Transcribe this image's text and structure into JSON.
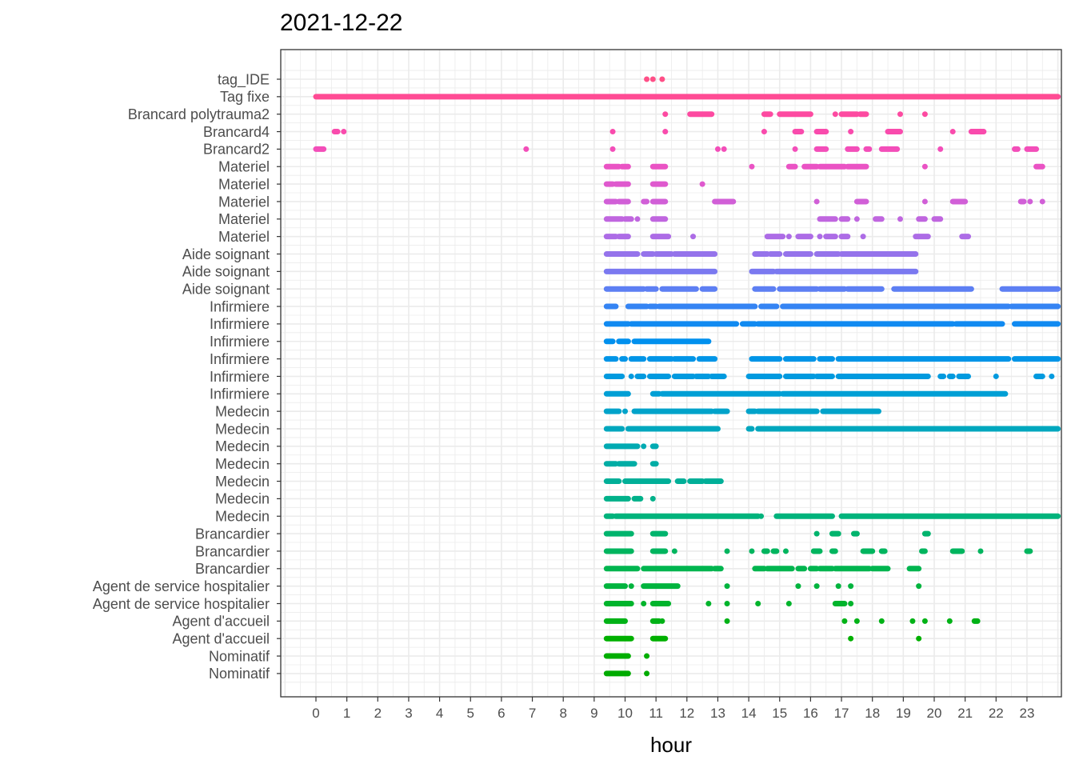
{
  "chart_data": {
    "type": "scatter",
    "title": "2021-12-22",
    "xlabel": "hour",
    "ylabel": "",
    "xlim": [
      -1.15,
      24
    ],
    "x_ticks": [
      "0",
      "1",
      "2",
      "3",
      "4",
      "5",
      "6",
      "7",
      "8",
      "9",
      "10",
      "11",
      "12",
      "13",
      "14",
      "15",
      "16",
      "17",
      "18",
      "19",
      "20",
      "21",
      "22",
      "23"
    ],
    "grid": true,
    "legend": "none",
    "categories": [
      "tag_IDE",
      "Tag fixe",
      "Brancard polytrauma2",
      "Brancard4",
      "Brancard2",
      "Materiel",
      "Materiel",
      "Materiel",
      "Materiel",
      "Materiel",
      "Aide soignant",
      "Aide soignant",
      "Aide soignant",
      "Infirmiere",
      "Infirmiere",
      "Infirmiere",
      "Infirmiere",
      "Infirmiere",
      "Infirmiere",
      "Medecin",
      "Medecin",
      "Medecin",
      "Medecin",
      "Medecin",
      "Medecin",
      "Medecin",
      "Brancardier",
      "Brancardier",
      "Brancardier",
      "Agent de service hospitalier",
      "Agent de service hospitalier",
      "Agent d'accueil",
      "Agent d'accueil",
      "Nominatif",
      "Nominatif"
    ],
    "series": [
      {
        "color": "#FF4F87",
        "segments": [
          [
            10.7,
            10.7
          ],
          [
            10.9,
            10.9
          ],
          [
            11.2,
            11.2
          ]
        ]
      },
      {
        "color": "#FF4B94",
        "segments": [
          [
            0,
            24
          ]
        ]
      },
      {
        "color": "#FD4AA1",
        "segments": [
          [
            11.3,
            11.3
          ],
          [
            12.1,
            12.8
          ],
          [
            14.5,
            14.7
          ],
          [
            15.0,
            16.0
          ],
          [
            16.8,
            16.8
          ],
          [
            17.0,
            17.5
          ],
          [
            17.6,
            17.8
          ],
          [
            18.9,
            18.9
          ],
          [
            19.7,
            19.7
          ]
        ]
      },
      {
        "color": "#F94BAD",
        "segments": [
          [
            0.6,
            0.7
          ],
          [
            0.9,
            0.9
          ],
          [
            9.6,
            9.6
          ],
          [
            11.3,
            11.3
          ],
          [
            14.5,
            14.5
          ],
          [
            15.5,
            15.7
          ],
          [
            16.2,
            16.5
          ],
          [
            17.3,
            17.3
          ],
          [
            18.5,
            18.9
          ],
          [
            20.6,
            20.6
          ],
          [
            21.2,
            21.6
          ]
        ]
      },
      {
        "color": "#F34EB9",
        "segments": [
          [
            0,
            0.25
          ],
          [
            6.8,
            6.8
          ],
          [
            9.6,
            9.6
          ],
          [
            13.0,
            13.0
          ],
          [
            13.2,
            13.2
          ],
          [
            15.5,
            15.5
          ],
          [
            16.2,
            16.5
          ],
          [
            17.2,
            17.5
          ],
          [
            17.8,
            17.9
          ],
          [
            18.3,
            18.8
          ],
          [
            20.2,
            20.2
          ],
          [
            22.6,
            22.7
          ],
          [
            23.0,
            23.3
          ]
        ]
      },
      {
        "color": "#EA53C4",
        "segments": [
          [
            9.4,
            9.8
          ],
          [
            9.9,
            10.1
          ],
          [
            10.9,
            11.3
          ],
          [
            14.1,
            14.1
          ],
          [
            15.3,
            15.5
          ],
          [
            15.8,
            16.2
          ],
          [
            16.3,
            17.1
          ],
          [
            17.2,
            17.8
          ],
          [
            19.7,
            19.7
          ],
          [
            23.3,
            23.5
          ]
        ]
      },
      {
        "color": "#DF59CE",
        "segments": [
          [
            9.4,
            9.6
          ],
          [
            9.7,
            10.1
          ],
          [
            10.9,
            11.3
          ],
          [
            12.5,
            12.5
          ]
        ]
      },
      {
        "color": "#D15FD7",
        "segments": [
          [
            9.4,
            9.7
          ],
          [
            9.8,
            10.1
          ],
          [
            10.6,
            10.7
          ],
          [
            10.9,
            11.3
          ],
          [
            12.9,
            13.5
          ],
          [
            16.2,
            16.2
          ],
          [
            17.5,
            17.8
          ],
          [
            19.7,
            19.7
          ],
          [
            20.6,
            21.0
          ],
          [
            22.8,
            22.9
          ],
          [
            23.1,
            23.1
          ],
          [
            23.5,
            23.5
          ]
        ]
      },
      {
        "color": "#C066DF",
        "segments": [
          [
            9.4,
            9.9
          ],
          [
            10.0,
            10.2
          ],
          [
            10.4,
            10.4
          ],
          [
            10.9,
            11.3
          ],
          [
            16.3,
            16.8
          ],
          [
            17.0,
            17.2
          ],
          [
            17.5,
            17.5
          ],
          [
            18.1,
            18.3
          ],
          [
            18.9,
            18.9
          ],
          [
            19.5,
            19.7
          ],
          [
            20.0,
            20.2
          ]
        ]
      },
      {
        "color": "#AD6CE6",
        "segments": [
          [
            9.4,
            9.7
          ],
          [
            9.8,
            10.1
          ],
          [
            10.9,
            11.4
          ],
          [
            12.2,
            12.2
          ],
          [
            14.6,
            15.1
          ],
          [
            15.3,
            15.3
          ],
          [
            15.6,
            16.0
          ],
          [
            16.3,
            16.3
          ],
          [
            16.5,
            16.8
          ],
          [
            17.0,
            17.2
          ],
          [
            17.7,
            17.7
          ],
          [
            19.4,
            19.8
          ],
          [
            20.9,
            21.1
          ]
        ]
      },
      {
        "color": "#9573EB",
        "segments": [
          [
            9.4,
            10.4
          ],
          [
            10.6,
            10.9
          ],
          [
            11.0,
            11.5
          ],
          [
            11.6,
            12.9
          ],
          [
            14.2,
            14.6
          ],
          [
            14.7,
            15.0
          ],
          [
            15.2,
            16.0
          ],
          [
            16.2,
            16.9
          ],
          [
            17.0,
            19.4
          ]
        ]
      },
      {
        "color": "#7B79F0",
        "segments": [
          [
            9.4,
            12.9
          ],
          [
            14.1,
            14.8
          ],
          [
            14.9,
            19.4
          ]
        ]
      },
      {
        "color": "#5D7FF3",
        "segments": [
          [
            9.4,
            10.6
          ],
          [
            10.7,
            11.0
          ],
          [
            11.2,
            12.3
          ],
          [
            12.5,
            12.9
          ],
          [
            14.2,
            14.8
          ],
          [
            15.0,
            16.2
          ],
          [
            16.3,
            17.1
          ],
          [
            17.2,
            18.3
          ],
          [
            18.7,
            21.2
          ],
          [
            22.2,
            24.0
          ]
        ]
      },
      {
        "color": "#3584F3",
        "segments": [
          [
            9.4,
            9.7
          ],
          [
            10.1,
            10.7
          ],
          [
            10.8,
            11.0
          ],
          [
            11.1,
            14.2
          ],
          [
            14.4,
            14.9
          ],
          [
            15.1,
            22.4
          ],
          [
            22.5,
            24.0
          ]
        ]
      },
      {
        "color": "#108AF1",
        "segments": [
          [
            9.4,
            10.1
          ],
          [
            10.2,
            13.6
          ],
          [
            13.8,
            14.2
          ],
          [
            14.3,
            20.6
          ],
          [
            20.7,
            22.2
          ],
          [
            22.6,
            24.0
          ]
        ]
      },
      {
        "color": "#0090EE",
        "segments": [
          [
            9.4,
            9.6
          ],
          [
            9.8,
            10.1
          ],
          [
            10.3,
            12.7
          ]
        ]
      },
      {
        "color": "#0095E7",
        "segments": [
          [
            9.4,
            9.7
          ],
          [
            9.9,
            10.0
          ],
          [
            10.2,
            10.6
          ],
          [
            10.8,
            11.5
          ],
          [
            11.6,
            12.2
          ],
          [
            12.4,
            12.9
          ],
          [
            14.1,
            15.0
          ],
          [
            15.2,
            16.1
          ],
          [
            16.3,
            16.7
          ],
          [
            16.9,
            22.4
          ],
          [
            22.6,
            24.0
          ]
        ]
      },
      {
        "color": "#009ADF",
        "segments": [
          [
            9.4,
            9.9
          ],
          [
            10.2,
            10.2
          ],
          [
            10.4,
            10.6
          ],
          [
            10.8,
            11.4
          ],
          [
            11.6,
            12.2
          ],
          [
            12.3,
            12.7
          ],
          [
            12.8,
            13.2
          ],
          [
            14.0,
            15.0
          ],
          [
            15.2,
            16.1
          ],
          [
            16.2,
            16.7
          ],
          [
            16.9,
            19.8
          ],
          [
            20.2,
            20.3
          ],
          [
            20.5,
            20.6
          ],
          [
            20.8,
            21.1
          ],
          [
            22.0,
            22.0
          ],
          [
            23.3,
            23.5
          ],
          [
            23.8,
            23.8
          ]
        ]
      },
      {
        "color": "#009FD5",
        "segments": [
          [
            9.4,
            10.1
          ],
          [
            10.9,
            11.1
          ],
          [
            11.2,
            15.0
          ],
          [
            15.1,
            22.3
          ]
        ]
      },
      {
        "color": "#00A3CA",
        "segments": [
          [
            9.4,
            9.8
          ],
          [
            10.0,
            10.0
          ],
          [
            10.3,
            12.8
          ],
          [
            12.9,
            13.3
          ],
          [
            14.0,
            14.2
          ],
          [
            14.3,
            16.2
          ],
          [
            16.4,
            18.2
          ]
        ]
      },
      {
        "color": "#00A7BE",
        "segments": [
          [
            9.4,
            9.9
          ],
          [
            10.1,
            13.0
          ],
          [
            14.0,
            14.1
          ],
          [
            14.3,
            24.0
          ]
        ]
      },
      {
        "color": "#00AAB2",
        "segments": [
          [
            9.4,
            10.4
          ],
          [
            10.6,
            10.6
          ],
          [
            10.9,
            11.0
          ]
        ]
      },
      {
        "color": "#00ADA5",
        "segments": [
          [
            9.4,
            9.7
          ],
          [
            9.8,
            10.3
          ],
          [
            10.9,
            11.0
          ]
        ]
      },
      {
        "color": "#00AF98",
        "segments": [
          [
            9.4,
            9.8
          ],
          [
            10.0,
            11.4
          ],
          [
            11.7,
            11.9
          ],
          [
            12.1,
            12.5
          ],
          [
            12.6,
            13.1
          ]
        ]
      },
      {
        "color": "#00B18A",
        "segments": [
          [
            9.4,
            10.1
          ],
          [
            10.3,
            10.5
          ],
          [
            10.9,
            10.9
          ]
        ]
      },
      {
        "color": "#00B37C",
        "segments": [
          [
            9.4,
            9.6
          ],
          [
            9.7,
            14.3
          ],
          [
            14.4,
            14.4
          ],
          [
            14.9,
            16.7
          ],
          [
            17.0,
            24.0
          ]
        ]
      },
      {
        "color": "#00B46D",
        "segments": [
          [
            9.4,
            10.2
          ],
          [
            10.9,
            11.3
          ],
          [
            16.2,
            16.2
          ],
          [
            16.7,
            16.9
          ],
          [
            17.4,
            17.5
          ],
          [
            19.7,
            19.8
          ]
        ]
      },
      {
        "color": "#00B55E",
        "segments": [
          [
            9.4,
            10.2
          ],
          [
            10.9,
            11.3
          ],
          [
            11.6,
            11.6
          ],
          [
            13.3,
            13.3
          ],
          [
            14.1,
            14.1
          ],
          [
            14.5,
            14.6
          ],
          [
            14.8,
            14.9
          ],
          [
            15.2,
            15.2
          ],
          [
            16.1,
            16.3
          ],
          [
            16.7,
            16.8
          ],
          [
            17.7,
            18.0
          ],
          [
            18.3,
            18.4
          ],
          [
            19.6,
            19.7
          ],
          [
            20.6,
            20.9
          ],
          [
            21.5,
            21.5
          ],
          [
            23.0,
            23.1
          ]
        ]
      },
      {
        "color": "#00B54F",
        "segments": [
          [
            9.4,
            10.4
          ],
          [
            10.6,
            12.8
          ],
          [
            12.9,
            13.1
          ],
          [
            14.2,
            14.5
          ],
          [
            14.6,
            15.4
          ],
          [
            15.6,
            15.8
          ],
          [
            16.0,
            16.2
          ],
          [
            16.3,
            16.7
          ],
          [
            16.8,
            17.9
          ],
          [
            18.0,
            18.5
          ],
          [
            19.2,
            19.5
          ]
        ]
      },
      {
        "color": "#00B43E",
        "segments": [
          [
            9.4,
            10.0
          ],
          [
            10.2,
            10.2
          ],
          [
            10.6,
            11.7
          ],
          [
            13.3,
            13.3
          ],
          [
            15.6,
            15.6
          ],
          [
            16.2,
            16.2
          ],
          [
            16.9,
            16.9
          ],
          [
            17.3,
            17.3
          ],
          [
            19.5,
            19.5
          ]
        ]
      },
      {
        "color": "#00B42C",
        "segments": [
          [
            9.4,
            10.2
          ],
          [
            10.6,
            10.6
          ],
          [
            10.9,
            11.4
          ],
          [
            12.7,
            12.7
          ],
          [
            13.3,
            13.3
          ],
          [
            14.3,
            14.3
          ],
          [
            15.3,
            15.3
          ],
          [
            16.8,
            17.1
          ],
          [
            17.3,
            17.3
          ]
        ]
      },
      {
        "color": "#00B216",
        "segments": [
          [
            9.4,
            10.0
          ],
          [
            10.9,
            11.1
          ],
          [
            11.2,
            11.2
          ],
          [
            13.3,
            13.3
          ],
          [
            17.1,
            17.1
          ],
          [
            17.5,
            17.5
          ],
          [
            18.3,
            18.3
          ],
          [
            19.3,
            19.3
          ],
          [
            19.7,
            19.7
          ],
          [
            20.5,
            20.5
          ],
          [
            21.3,
            21.4
          ]
        ]
      },
      {
        "color": "#00B000",
        "segments": [
          [
            9.4,
            10.2
          ],
          [
            10.9,
            11.3
          ],
          [
            17.3,
            17.3
          ],
          [
            19.5,
            19.5
          ]
        ]
      },
      {
        "color": "#00AE00",
        "segments": [
          [
            9.4,
            10.1
          ],
          [
            10.7,
            10.7
          ]
        ]
      },
      {
        "color": "#00AB00",
        "segments": [
          [
            9.4,
            10.1
          ],
          [
            10.7,
            10.7
          ]
        ]
      }
    ]
  }
}
